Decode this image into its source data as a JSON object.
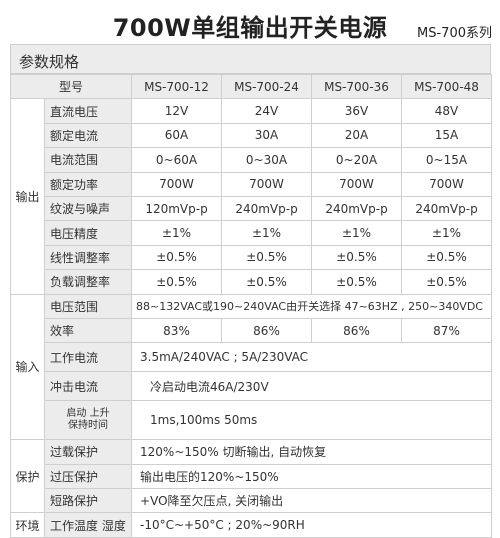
{
  "title": "700W单组输出开关电源",
  "model_series": "MS-700系列",
  "section_title": "参数规格",
  "header": {
    "label": "型号",
    "models": [
      "MS-700-12",
      "MS-700-24",
      "MS-700-36",
      "MS-700-48"
    ]
  },
  "output": {
    "group": "输出",
    "rows": [
      {
        "label": "直流电压",
        "values": [
          "12V",
          "24V",
          "36V",
          "48V"
        ]
      },
      {
        "label": "额定电流",
        "values": [
          "60A",
          "30A",
          "20A",
          "15A"
        ]
      },
      {
        "label": "电流范围",
        "values": [
          "0~60A",
          "0~30A",
          "0~20A",
          "0~15A"
        ]
      },
      {
        "label": "额定功率",
        "values": [
          "700W",
          "700W",
          "700W",
          "700W"
        ]
      },
      {
        "label": "纹波与噪声",
        "values": [
          "120mVp-p",
          "240mVp-p",
          "240mVp-p",
          "240mVp-p"
        ]
      },
      {
        "label": "电压精度",
        "values": [
          "±1%",
          "±1%",
          "±1%",
          "±1%"
        ]
      },
      {
        "label": "线性调整率",
        "values": [
          "±0.5%",
          "±0.5%",
          "±0.5%",
          "±0.5%"
        ]
      },
      {
        "label": "负载调整率",
        "values": [
          "±0.5%",
          "±0.5%",
          "±0.5%",
          "±0.5%"
        ]
      }
    ]
  },
  "input": {
    "group": "输入",
    "voltage_range": {
      "label": "电压范围",
      "value": "88~132VAC或190~240VAC由开关选择 47~63HZ , 250~340VDC"
    },
    "efficiency": {
      "label": "效率",
      "values": [
        "83%",
        "86%",
        "86%",
        "87%"
      ]
    },
    "working_current": {
      "label": "工作电流",
      "value": "3.5mA/240VAC ; 5A/230VAC"
    },
    "inrush_current": {
      "label": "冲击电流",
      "value": "冷启动电流46A/230V"
    },
    "rise_time": {
      "label_line1": "启动 上升",
      "label_line2": "保持时间",
      "value": "1ms,100ms 50ms"
    }
  },
  "protection": {
    "group": "保护",
    "rows": [
      {
        "label": "过载保护",
        "value": "120%~150% 切断输出, 自动恢复"
      },
      {
        "label": "过压保护",
        "value": "输出电压的120%~150%"
      },
      {
        "label": "短路保护",
        "value": "+VO降至欠压点, 关闭输出"
      }
    ]
  },
  "environment": {
    "group": "环境",
    "rows": [
      {
        "label": "工作温度 湿度",
        "value": "-10°C~+50°C ; 20%~90RH"
      }
    ]
  }
}
